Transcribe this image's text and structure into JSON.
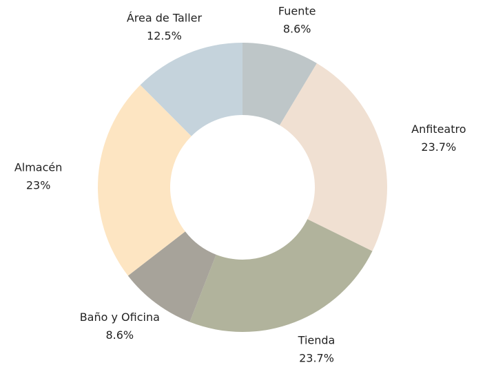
{
  "chart_data": {
    "type": "donut",
    "categories": [
      "Fuente",
      "Anfiteatro",
      "Tienda",
      "Baño y Oficina",
      "Almacén",
      "Área de Taller"
    ],
    "values": [
      8.6,
      23.7,
      23.7,
      8.6,
      23,
      12.5
    ],
    "value_labels": [
      "8.6%",
      "23.7%",
      "23.7%",
      "8.6%",
      "23%",
      "12.5%"
    ],
    "colors": [
      "#bec6c8",
      "#f0e0d2",
      "#b1b39c",
      "#a7a39a",
      "#fde5c2",
      "#c5d3dc"
    ]
  }
}
